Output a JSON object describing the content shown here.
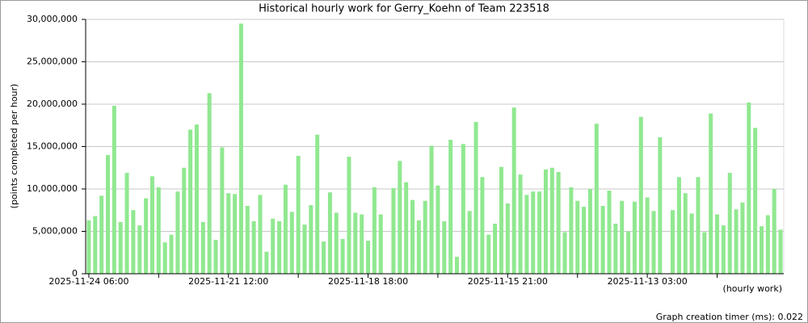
{
  "chart_data": {
    "type": "bar",
    "title": "Historical hourly work for Gerry_Koehn of Team 223518",
    "y_label": "(points completed per hour)",
    "x_label": "(hourly work)",
    "footer": "Graph creation timer (ms): 0.022",
    "color": "#90e890",
    "grid": true,
    "ylim": [
      0,
      30000000
    ],
    "yticks": [
      0,
      {
        "value": 5000000,
        "label": "5,000,000"
      },
      {
        "value": 10000000,
        "label": "10,000,000"
      },
      {
        "value": 15000000,
        "label": "15,000,000"
      },
      {
        "value": 20000000,
        "label": "20,000,000"
      },
      {
        "value": 25000000,
        "label": "25,000,000"
      },
      {
        "value": 30000000,
        "label": "30,000,000"
      }
    ],
    "categories": [
      "2025-11-24 06:00",
      null,
      null,
      null,
      null,
      null,
      null,
      null,
      null,
      null,
      null,
      null,
      null,
      null,
      null,
      null,
      null,
      null,
      null,
      null,
      null,
      null,
      "2025-11-21 12:00",
      null,
      null,
      null,
      null,
      null,
      null,
      null,
      null,
      null,
      null,
      null,
      null,
      null,
      null,
      null,
      null,
      null,
      null,
      null,
      null,
      null,
      "2025-11-18 18:00",
      null,
      null,
      null,
      null,
      null,
      null,
      null,
      null,
      null,
      null,
      null,
      null,
      null,
      null,
      null,
      null,
      null,
      null,
      null,
      null,
      null,
      "2025-11-15 21:00",
      null,
      null,
      null,
      null,
      null,
      null,
      null,
      null,
      null,
      null,
      null,
      null,
      null,
      null,
      null,
      null,
      null,
      null,
      null,
      null,
      null,
      "2025-11-13 03:00",
      null,
      null,
      null,
      null,
      null,
      null,
      null,
      null,
      null,
      null,
      null,
      null,
      null,
      null,
      null,
      null,
      null,
      null,
      null,
      null,
      null
    ],
    "values": [
      6300000,
      6800000,
      9200000,
      14000000,
      19800000,
      6100000,
      11900000,
      7500000,
      5700000,
      8900000,
      11500000,
      10200000,
      3700000,
      4600000,
      9700000,
      12500000,
      17000000,
      17600000,
      6100000,
      21300000,
      4000000,
      14900000,
      9500000,
      9400000,
      29500000,
      8000000,
      6200000,
      9300000,
      2600000,
      6500000,
      6200000,
      10500000,
      7300000,
      13900000,
      5800000,
      8100000,
      16400000,
      3800000,
      9600000,
      7200000,
      4100000,
      13800000,
      7200000,
      7000000,
      3900000,
      10200000,
      7000000,
      0,
      10100000,
      13300000,
      10800000,
      8700000,
      6300000,
      8600000,
      15100000,
      10400000,
      6200000,
      15800000,
      2000000,
      15300000,
      7400000,
      17900000,
      11400000,
      4600000,
      5900000,
      12600000,
      8300000,
      19600000,
      11700000,
      9300000,
      9700000,
      9700000,
      12300000,
      12500000,
      12000000,
      4900000,
      10200000,
      8600000,
      7900000,
      10000000,
      17700000,
      8000000,
      9800000,
      5900000,
      8600000,
      5000000,
      8500000,
      18500000,
      9000000,
      7400000,
      16100000,
      0,
      7500000,
      11400000,
      9500000,
      7100000,
      11400000,
      4900000,
      18900000,
      7000000,
      5700000,
      11900000,
      7600000,
      8400000,
      20200000,
      17200000,
      5600000,
      6900000,
      10000000,
      5200000
    ]
  }
}
